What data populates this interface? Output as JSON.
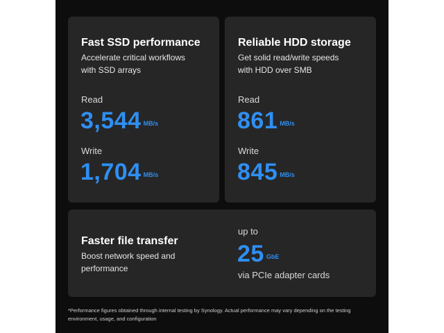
{
  "ssd_card": {
    "title": "Fast SSD performance",
    "desc_line1": "Accelerate critical workflows",
    "desc_line2": "with SSD arrays",
    "read_label": "Read",
    "read_value": "3,544",
    "read_unit": "MB/s",
    "write_label": "Write",
    "write_value": "1,704",
    "write_unit": "MB/s"
  },
  "hdd_card": {
    "title": "Reliable HDD storage",
    "desc_line1": "Get solid read/write speeds",
    "desc_line2": "with HDD over SMB",
    "read_label": "Read",
    "read_value": "861",
    "read_unit": "MB/s",
    "write_label": "Write",
    "write_value": "845",
    "write_unit": "MB/s"
  },
  "network_card": {
    "title": "Faster file transfer",
    "desc_line1": "Boost network speed and",
    "desc_line2": "performance",
    "prefix": "up to",
    "value": "25",
    "unit": "GbE",
    "suffix": "via PCIe adapter cards"
  },
  "footnote": {
    "line1": "*Performance figures obtained through internal testing by Synology. Actual performance may vary depending on the testing",
    "line2": "environment, usage, and configuration"
  },
  "colors": {
    "accent": "#2f8ff2",
    "card_background": "#262626",
    "page_background": "#0d0d0d"
  }
}
